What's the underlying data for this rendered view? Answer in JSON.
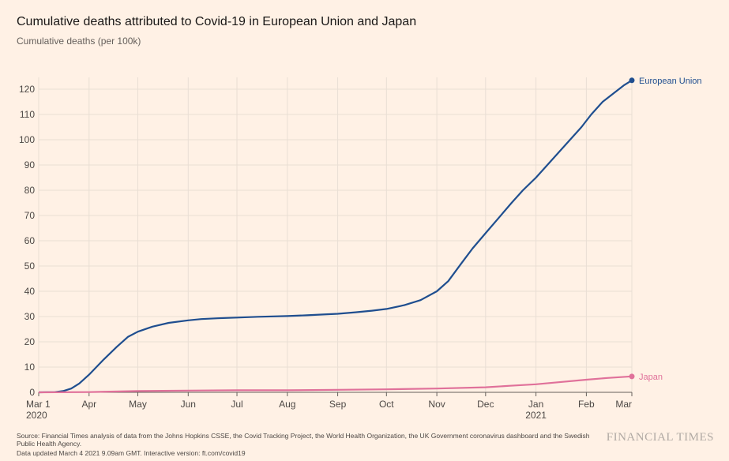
{
  "title": "Cumulative deaths attributed to Covid-19 in European Union and Japan",
  "subtitle": "Cumulative deaths (per 100k)",
  "source": "Source: Financial Times analysis of data from the Johns Hopkins CSSE, the Covid Tracking Project, the World Health Organization, the UK Government coronavirus dashboard and the Swedish Public Health Agency.",
  "updated": "Data updated March 4 2021 9.09am GMT. Interactive version: ft.com/covid19",
  "brand": "FINANCIAL TIMES",
  "colors": {
    "eu": "#1f4e8f",
    "japan": "#e0719a",
    "grid": "#e9ded4",
    "axis": "#66605c"
  },
  "chart_data": {
    "type": "line",
    "x_ticks": [
      {
        "label": "Mar 1",
        "sub": "2020",
        "day": 0
      },
      {
        "label": "Apr",
        "day": 31
      },
      {
        "label": "May",
        "day": 61
      },
      {
        "label": "Jun",
        "day": 92
      },
      {
        "label": "Jul",
        "day": 122
      },
      {
        "label": "Aug",
        "day": 153
      },
      {
        "label": "Sep",
        "day": 184
      },
      {
        "label": "Oct",
        "day": 214
      },
      {
        "label": "Nov",
        "day": 245
      },
      {
        "label": "Dec",
        "day": 275
      },
      {
        "label": "Jan",
        "sub": "2021",
        "day": 306
      },
      {
        "label": "Feb",
        "day": 337
      },
      {
        "label": "Mar",
        "day": 365
      }
    ],
    "xlim": [
      0,
      365
    ],
    "ylim": [
      0,
      125
    ],
    "y_ticks": [
      0,
      10,
      20,
      30,
      40,
      50,
      60,
      70,
      80,
      90,
      100,
      110,
      120
    ],
    "grid": true,
    "series": [
      {
        "name": "European Union",
        "color": "#1f4e8f",
        "points": [
          [
            0,
            0
          ],
          [
            10,
            0.1
          ],
          [
            15,
            0.5
          ],
          [
            20,
            1.5
          ],
          [
            25,
            3.5
          ],
          [
            31,
            7
          ],
          [
            40,
            13
          ],
          [
            48,
            18
          ],
          [
            55,
            22
          ],
          [
            61,
            24
          ],
          [
            70,
            26
          ],
          [
            80,
            27.5
          ],
          [
            92,
            28.5
          ],
          [
            100,
            29
          ],
          [
            110,
            29.3
          ],
          [
            122,
            29.6
          ],
          [
            135,
            29.9
          ],
          [
            153,
            30.2
          ],
          [
            165,
            30.5
          ],
          [
            175,
            30.8
          ],
          [
            184,
            31.1
          ],
          [
            195,
            31.7
          ],
          [
            205,
            32.3
          ],
          [
            214,
            33
          ],
          [
            225,
            34.5
          ],
          [
            235,
            36.5
          ],
          [
            245,
            40
          ],
          [
            252,
            44
          ],
          [
            260,
            51
          ],
          [
            267,
            57
          ],
          [
            275,
            63
          ],
          [
            283,
            69
          ],
          [
            291,
            75
          ],
          [
            298,
            80
          ],
          [
            306,
            85
          ],
          [
            313,
            90
          ],
          [
            320,
            95
          ],
          [
            327,
            100
          ],
          [
            334,
            105
          ],
          [
            340,
            110
          ],
          [
            347,
            115
          ],
          [
            355,
            119
          ],
          [
            360,
            121.5
          ],
          [
            365,
            123.5
          ]
        ]
      },
      {
        "name": "Japan",
        "color": "#e0719a",
        "points": [
          [
            0,
            0
          ],
          [
            31,
            0.1
          ],
          [
            61,
            0.5
          ],
          [
            92,
            0.7
          ],
          [
            122,
            0.8
          ],
          [
            153,
            0.8
          ],
          [
            184,
            1.0
          ],
          [
            214,
            1.2
          ],
          [
            245,
            1.5
          ],
          [
            275,
            2.0
          ],
          [
            290,
            2.6
          ],
          [
            306,
            3.2
          ],
          [
            320,
            4.0
          ],
          [
            337,
            5.0
          ],
          [
            350,
            5.7
          ],
          [
            365,
            6.3
          ]
        ]
      }
    ]
  }
}
